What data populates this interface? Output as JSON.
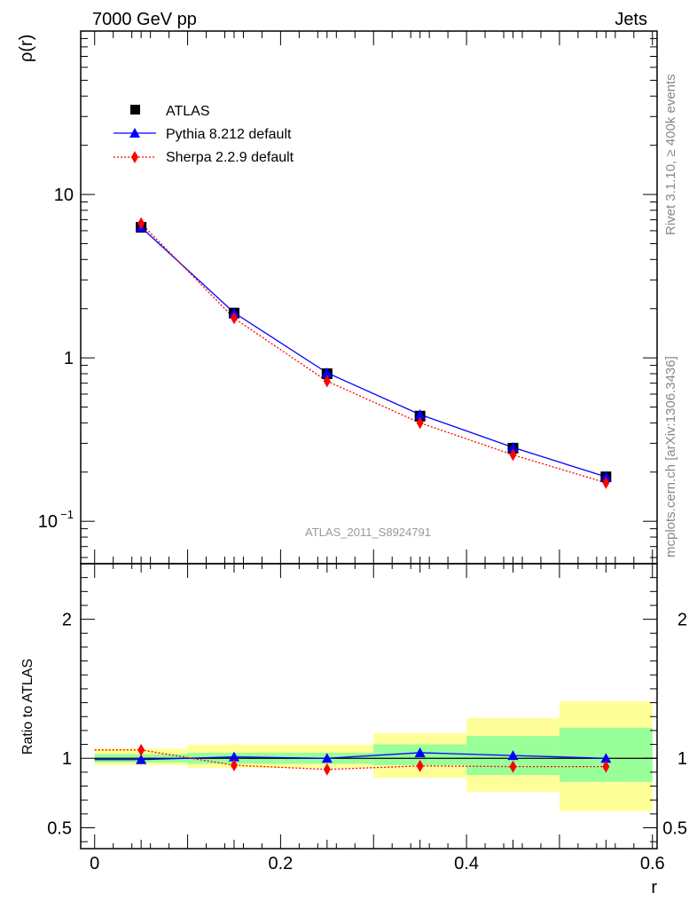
{
  "header": {
    "left_title": "7000 GeV pp",
    "right_title": "Jets"
  },
  "side_labels": {
    "rivet": "Rivet 3.1.10, ≥ 400k events",
    "mcplots": "mcplots.cern.ch [arXiv:1306.3436]"
  },
  "watermark": "ATLAS_2011_S8924791",
  "colors": {
    "data": "#000000",
    "pythia": "#0000ff",
    "sherpa": "#ff0000",
    "band_inner": "#99ff99",
    "band_outer": "#ffff99"
  },
  "chart_data": [
    {
      "type": "line",
      "title": "",
      "xlabel": "r",
      "ylabel": "ρ(r)",
      "yscale": "log",
      "xlim": [
        -0.015,
        0.605
      ],
      "ylim": [
        0.055,
        100
      ],
      "x_ticks": [
        0,
        0.2,
        0.4,
        0.6
      ],
      "y_ticks": [
        {
          "value": 10,
          "label": "10"
        },
        {
          "value": 1,
          "label": "1"
        },
        {
          "value": 0.1,
          "label": "10",
          "exp": "−1"
        }
      ],
      "x": [
        0.05,
        0.15,
        0.25,
        0.35,
        0.45,
        0.55
      ],
      "series": [
        {
          "name": "ATLAS",
          "marker": "square",
          "values": [
            6.3,
            1.88,
            0.8,
            0.44,
            0.28,
            0.187
          ]
        },
        {
          "name": "Pythia 8.212 default",
          "marker": "triangle",
          "values": [
            6.3,
            1.89,
            0.81,
            0.45,
            0.283,
            0.187
          ]
        },
        {
          "name": "Sherpa 2.2.9 default",
          "marker": "diamond",
          "values": [
            6.65,
            1.75,
            0.72,
            0.4,
            0.255,
            0.172
          ]
        }
      ],
      "legend": [
        "ATLAS",
        "Pythia 8.212 default",
        "Sherpa 2.2.9 default"
      ],
      "legend_position": "top-left"
    },
    {
      "type": "line",
      "title": "",
      "xlabel": "r",
      "ylabel": "Ratio to ATLAS",
      "xlim": [
        -0.015,
        0.605
      ],
      "ylim": [
        0.35,
        2.4
      ],
      "x_ticks": [
        0,
        0.2,
        0.4,
        0.6
      ],
      "y_ticks": [
        {
          "value": 0.5,
          "label": "0.5"
        },
        {
          "value": 1,
          "label": "1"
        },
        {
          "value": 2,
          "label": "2"
        }
      ],
      "bins": [
        {
          "lo": 0.0,
          "hi": 0.1,
          "inner": [
            0.97,
            1.03
          ],
          "outer": [
            0.95,
            1.07
          ]
        },
        {
          "lo": 0.1,
          "hi": 0.2,
          "inner": [
            0.96,
            1.04
          ],
          "outer": [
            0.93,
            1.1
          ]
        },
        {
          "lo": 0.2,
          "hi": 0.3,
          "inner": [
            0.96,
            1.04
          ],
          "outer": [
            0.93,
            1.1
          ]
        },
        {
          "lo": 0.3,
          "hi": 0.4,
          "inner": [
            0.95,
            1.1
          ],
          "outer": [
            0.86,
            1.18
          ]
        },
        {
          "lo": 0.4,
          "hi": 0.5,
          "inner": [
            0.88,
            1.16
          ],
          "outer": [
            0.76,
            1.29
          ]
        },
        {
          "lo": 0.5,
          "hi": 0.6,
          "inner": [
            0.83,
            1.22
          ],
          "outer": [
            0.62,
            1.41
          ]
        }
      ],
      "x": [
        0.05,
        0.15,
        0.25,
        0.35,
        0.45,
        0.55
      ],
      "series": [
        {
          "name": "Pythia 8.212 default",
          "marker": "triangle",
          "values": [
            0.99,
            1.01,
            1.0,
            1.04,
            1.02,
            1.0
          ]
        },
        {
          "name": "Sherpa 2.2.9 default",
          "marker": "diamond",
          "values": [
            1.06,
            0.95,
            0.92,
            0.945,
            0.94,
            0.94
          ]
        }
      ],
      "reference_line": 1
    }
  ]
}
